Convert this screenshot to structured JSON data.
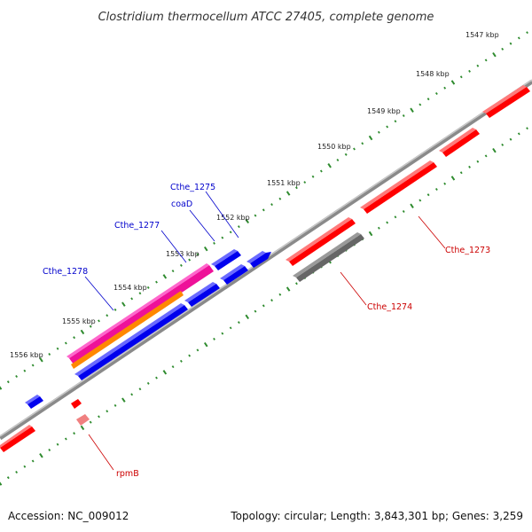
{
  "title": "Clostridium thermocellum ATCC 27405, complete genome",
  "footer": {
    "accession": "Accession: NC_009012",
    "summary": "Topology: circular; Length: 3,843,301 bp; Genes: 3,259"
  },
  "colors": {
    "backbone": "#8a8a8a",
    "tick_dots": "#2e8b2e",
    "gene_red": "#ff0000",
    "gene_blue": "#0000ee",
    "gene_gray": "#666666",
    "gene_magenta": "#ee1199",
    "gene_orange": "#ff8800",
    "gene_pink": "#f08080",
    "label_blue": "#0000cc",
    "label_red": "#cc0000"
  },
  "ticks": [
    "1547 kbp",
    "1548 kbp",
    "1549 kbp",
    "1550 kbp",
    "1551 kbp",
    "1552 kbp",
    "1553 kbp",
    "1554 kbp",
    "1555 kbp",
    "1556 kbp"
  ],
  "gene_labels": {
    "cthe_1275": "Cthe_1275",
    "coad": "coaD",
    "cthe_1277": "Cthe_1277",
    "cthe_1278": "Cthe_1278",
    "cthe_1273": "Cthe_1273",
    "cthe_1274": "Cthe_1274",
    "rpmb": "rpmB"
  }
}
